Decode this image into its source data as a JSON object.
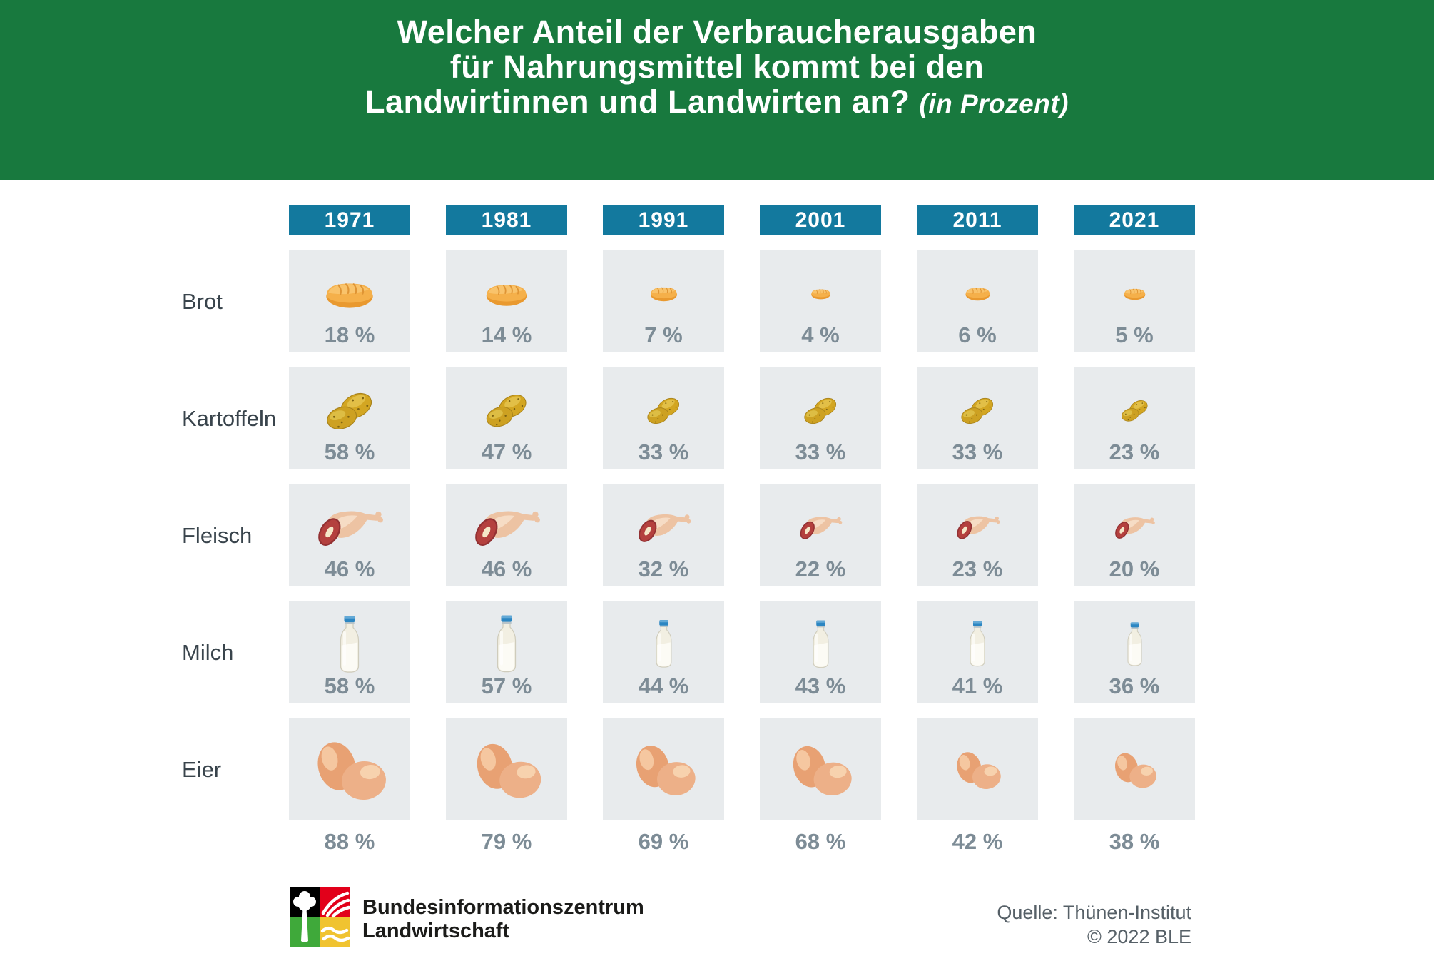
{
  "header": {
    "title_lines": [
      "Welcher Anteil der Verbraucherausgaben",
      "für Nahrungsmittel kommt bei den",
      "Landwirtinnen und Landwirten an?"
    ],
    "title_suffix": "(in Prozent)"
  },
  "chart_data": {
    "type": "pictogram_table",
    "title": "Welcher Anteil der Verbraucherausgaben für Nahrungsmittel kommt bei den Landwirtinnen und Landwirten an?",
    "unit": "Prozent",
    "categories": [
      "1971",
      "1981",
      "1991",
      "2001",
      "2011",
      "2021"
    ],
    "series": [
      {
        "name": "Brot",
        "icon": "bread-icon",
        "values": [
          18,
          14,
          7,
          4,
          6,
          5
        ],
        "display": [
          "18 %",
          "14 %",
          "7 %",
          "4 %",
          "6 %",
          "5 %"
        ]
      },
      {
        "name": "Kartoffeln",
        "icon": "potatoes-icon",
        "values": [
          58,
          47,
          33,
          33,
          33,
          23
        ],
        "display": [
          "58 %",
          "47 %",
          "33 %",
          "33 %",
          "33 %",
          "23 %"
        ]
      },
      {
        "name": "Fleisch",
        "icon": "meat-icon",
        "values": [
          46,
          46,
          32,
          22,
          23,
          20
        ],
        "display": [
          "46 %",
          "46 %",
          "32 %",
          "22 %",
          "23 %",
          "20 %"
        ]
      },
      {
        "name": "Milch",
        "icon": "milk-icon",
        "values": [
          58,
          57,
          44,
          43,
          41,
          36
        ],
        "display": [
          "58 %",
          "57 %",
          "44 %",
          "43 %",
          "41 %",
          "36 %"
        ]
      },
      {
        "name": "Eier",
        "icon": "eggs-icon",
        "values": [
          88,
          79,
          69,
          68,
          42,
          38
        ],
        "display": [
          "88 %",
          "79 %",
          "69 %",
          "68 %",
          "42 %",
          "38 %"
        ]
      }
    ]
  },
  "footer": {
    "org_line1": "Bundesinformationszentrum",
    "org_line2": "Landwirtschaft",
    "source_line1": "Quelle: Thünen-Institut",
    "source_line2": "© 2022 BLE"
  },
  "colors": {
    "banner_green": "#18793e",
    "year_box_blue": "#13799e",
    "cell_background": "#e8ebed",
    "percent_text": "#7d8c96",
    "label_text": "#39444c",
    "logo_black": "#000000",
    "logo_red": "#e2001a",
    "logo_green": "#3fa93a",
    "logo_yellow": "#f0c330"
  }
}
